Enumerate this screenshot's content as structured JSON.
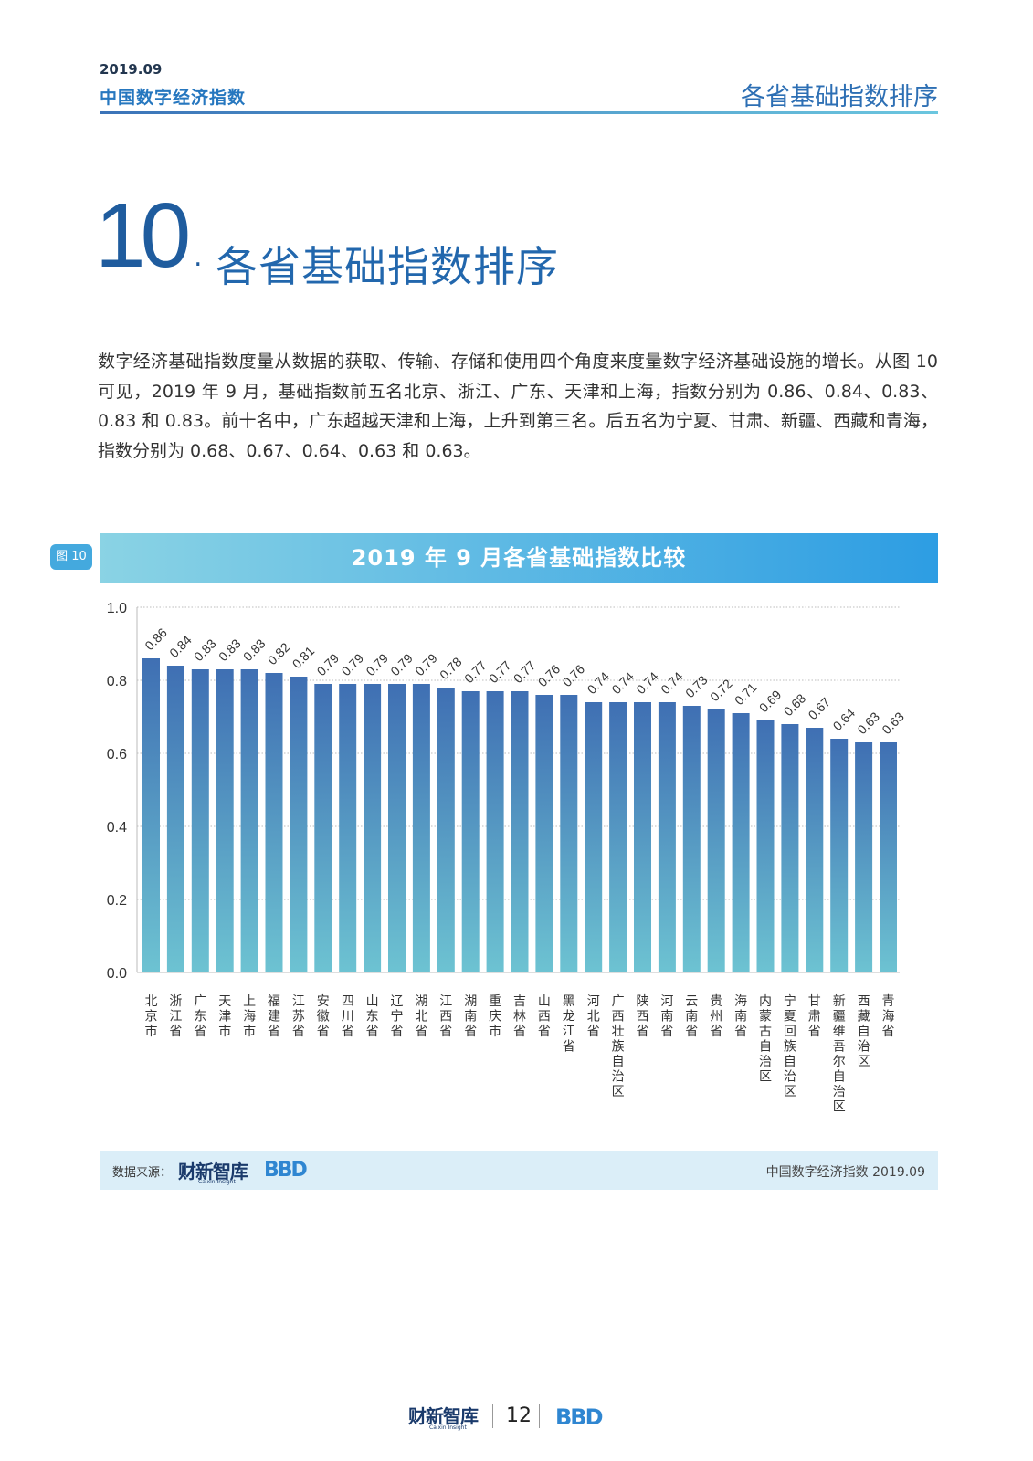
{
  "header": {
    "date": "2019.09",
    "report_title": "中国数字经济指数",
    "section_name": "各省基础指数排序"
  },
  "section": {
    "number": "10",
    "dot": ".",
    "title": "各省基础指数排序"
  },
  "body_text": "数字经济基础指数度量从数据的获取、传输、存储和使用四个角度来度量数字经济基础设施的增长。从图 10 可见，2019 年 9 月，基础指数前五名北京、浙江、广东、天津和上海，指数分别为 0.86、0.84、0.83、0.83 和 0.83。前十名中，广东超越天津和上海，上升到第三名。后五名为宁夏、甘肃、新疆、西藏和青海，指数分别为 0.68、0.67、0.64、0.63 和 0.63。",
  "figure": {
    "tag": "图 10",
    "banner_title": "2019 年 9 月各省基础指数比较"
  },
  "chart_data": {
    "type": "bar",
    "title": "2019 年 9 月各省基础指数比较",
    "xlabel": "",
    "ylabel": "",
    "ylim": [
      0,
      1.0
    ],
    "yticks": [
      "0.0",
      "0.2",
      "0.4",
      "0.6",
      "0.8",
      "1.0"
    ],
    "grid": true,
    "categories": [
      "北京市",
      "浙江省",
      "广东省",
      "天津市",
      "上海市",
      "福建省",
      "江苏省",
      "安徽省",
      "四川省",
      "山东省",
      "辽宁省",
      "湖北省",
      "江西省",
      "湖南省",
      "重庆市",
      "吉林省",
      "山西省",
      "黑龙江省",
      "河北省",
      "广西壮族自治区",
      "陕西省",
      "河南省",
      "云南省",
      "贵州省",
      "海南省",
      "内蒙古自治区",
      "宁夏回族自治区",
      "甘肃省",
      "新疆维吾尔自治区",
      "西藏自治区",
      "青海省"
    ],
    "values": [
      0.86,
      0.84,
      0.83,
      0.83,
      0.83,
      0.82,
      0.81,
      0.79,
      0.79,
      0.79,
      0.79,
      0.79,
      0.78,
      0.77,
      0.77,
      0.77,
      0.76,
      0.76,
      0.74,
      0.74,
      0.74,
      0.74,
      0.73,
      0.72,
      0.71,
      0.69,
      0.68,
      0.67,
      0.64,
      0.63,
      0.63
    ],
    "labels": [
      "0.86",
      "0.84",
      "0.83",
      "0.83",
      "0.83",
      "0.82",
      "0.81",
      "0.79",
      "0.79",
      "0.79",
      "0.79",
      "0.79",
      "0.78",
      "0.77",
      "0.77",
      "0.77",
      "0.76",
      "0.76",
      "0.74",
      "0.74",
      "0.74",
      "0.74",
      "0.73",
      "0.72",
      "0.71",
      "0.69",
      "0.68",
      "0.67",
      "0.64",
      "0.63",
      "0.63"
    ]
  },
  "source": {
    "label": "数据来源：",
    "logo": "财新智库",
    "logo_sub": "Caixin Insight",
    "bbd": "BBD",
    "right_text": "中国数字经济指数 2019.09"
  },
  "footer": {
    "logo": "财新智库",
    "logo_sub": "Caixin Insight",
    "page": "12",
    "bbd": "BBD"
  },
  "colors": {
    "bar_top": "#3f6fb3",
    "bar_bottom": "#6dc3d2",
    "accent": "#2d6fb4"
  }
}
